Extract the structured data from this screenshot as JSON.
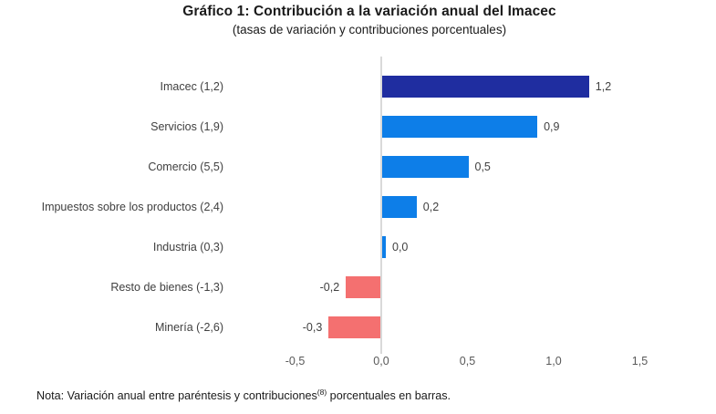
{
  "chart_data": {
    "type": "bar",
    "orientation": "horizontal",
    "title": "Gráfico 1: Contribución a la variación anual del Imacec",
    "subtitle": "(tasas de variación y contribuciones porcentuales)",
    "categories": [
      "Imacec (1,2)",
      "Servicios (1,9)",
      "Comercio (5,5)",
      "Impuestos sobre los productos (2,4)",
      "Industria (0,3)",
      "Resto de bienes (-1,3)",
      "Minería (-2,6)"
    ],
    "values": [
      1.2,
      0.9,
      0.5,
      0.2,
      0.0,
      -0.2,
      -0.3
    ],
    "value_labels": [
      "1,2",
      "0,9",
      "0,5",
      "0,2",
      "0,0",
      "-0,2",
      "-0,3"
    ],
    "bar_colors": [
      "#1f2da0",
      "#0d7ee8",
      "#0d7ee8",
      "#0d7ee8",
      "#0d7ee8",
      "#f47070",
      "#f47070"
    ],
    "x_tick_labels": [
      "-0,5",
      "0,0",
      "0,5",
      "1,0",
      "1,5"
    ],
    "x_tick_values": [
      -0.5,
      0.0,
      0.5,
      1.0,
      1.5
    ],
    "xlim": [
      -0.5,
      1.5
    ],
    "xlabel": "",
    "ylabel": "",
    "grid": "vertical-zero-line-only",
    "legend": "none"
  },
  "colors": {
    "imacec_bar": "#1f2da0",
    "positive_bar": "#0d7ee8",
    "negative_bar": "#f47070",
    "axis_line": "#d9d9d9",
    "tick_label": "#595959",
    "label_text": "#404040",
    "title_text": "#1a1a1a",
    "background": "#ffffff"
  },
  "note": {
    "prefix": "Nota: Variación anual entre paréntesis y contribuciones",
    "superscript": "(8)",
    "suffix": " porcentuales en barras."
  }
}
